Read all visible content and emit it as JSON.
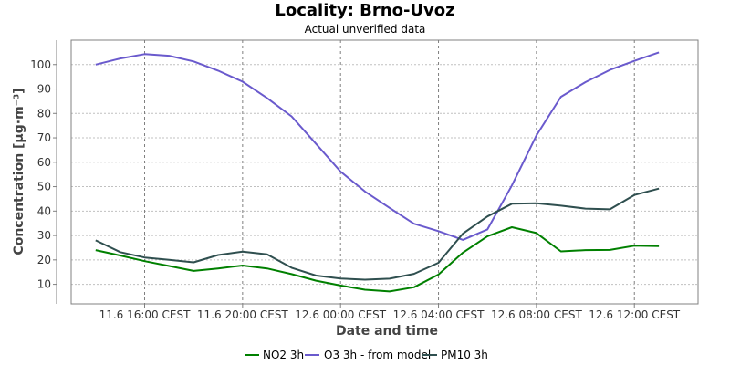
{
  "chart_data": {
    "type": "line",
    "title": "Locality: Brno-Uvoz",
    "subtitle": "Actual unverified data",
    "xlabel": "Date and time",
    "ylabel": "Concentration [µg·m⁻³]",
    "ylim": [
      2,
      110
    ],
    "yticks": [
      10,
      20,
      30,
      40,
      50,
      60,
      70,
      80,
      90,
      100
    ],
    "xlim": [
      13.0,
      38.6
    ],
    "xticks": [
      {
        "pos": 16,
        "label": "11.6 16:00 CEST"
      },
      {
        "pos": 20,
        "label": "11.6 20:00 CEST"
      },
      {
        "pos": 24,
        "label": "12.6 00:00 CEST"
      },
      {
        "pos": 28,
        "label": "12.6 04:00 CEST"
      },
      {
        "pos": 32,
        "label": "12.6 08:00 CEST"
      },
      {
        "pos": 36,
        "label": "12.6 12:00 CEST"
      }
    ],
    "grid": true,
    "legend_position": "bottom",
    "x": [
      14,
      15,
      16,
      17,
      18,
      19,
      20,
      21,
      22,
      23,
      24,
      25,
      26,
      27,
      28,
      29,
      30,
      31,
      32,
      33,
      34,
      35,
      36,
      37
    ],
    "series": [
      {
        "name": "NO2 3h",
        "color": "#008000",
        "values": [
          24,
          21.8,
          19.5,
          17.5,
          15.5,
          16.5,
          17.7,
          16.5,
          14.2,
          11.5,
          9.5,
          7.8,
          7.1,
          8.8,
          14,
          23,
          29.7,
          33.4,
          31,
          23.5,
          24,
          24.1,
          25.8,
          25.6
        ]
      },
      {
        "name": "O3 3h - from model",
        "color": "#6a5acd",
        "values": [
          100,
          102.5,
          104.3,
          103.6,
          101.3,
          97.5,
          93,
          86.3,
          78.8,
          67.5,
          56.2,
          48,
          41.3,
          34.8,
          31.8,
          28.2,
          32.5,
          50.5,
          71,
          86.8,
          92.8,
          97.8,
          101.5,
          105
        ]
      },
      {
        "name": "PM10 3h",
        "color": "#2f4f4f",
        "values": [
          28,
          23.2,
          21,
          20,
          19,
          22,
          23.4,
          22.3,
          16.8,
          13.6,
          12.4,
          11.9,
          12.3,
          14.3,
          18.8,
          30.8,
          37.8,
          43,
          43.2,
          42.2,
          41,
          40.7,
          46.6,
          49.2
        ]
      }
    ]
  }
}
